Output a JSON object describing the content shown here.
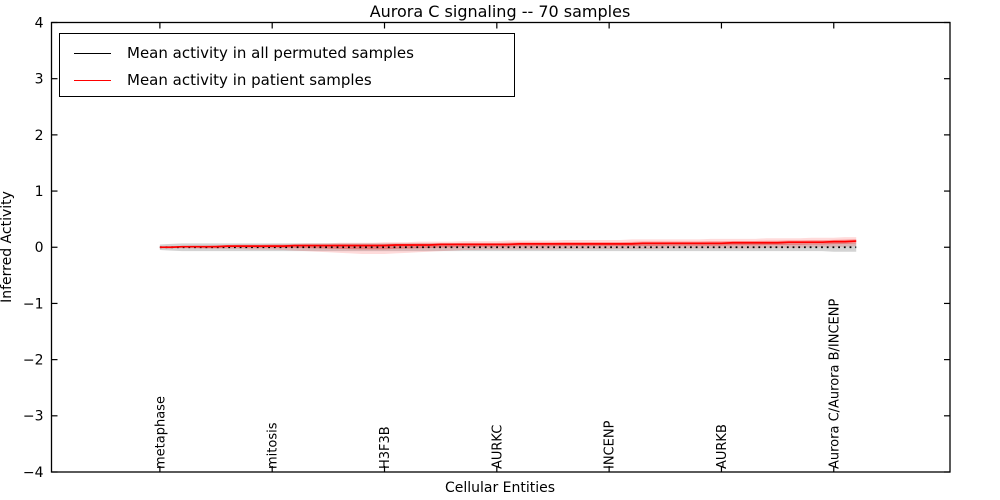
{
  "chart_data": {
    "type": "line",
    "title": "Aurora C signaling -- 70 samples",
    "xlabel": "Cellular Entities",
    "ylabel": "Inferred Activity",
    "ylim": [
      -4,
      4
    ],
    "yticks": [
      4,
      3,
      2,
      1,
      0,
      -1,
      -2,
      -3,
      -4
    ],
    "xlim": [
      -9.65,
      70.35
    ],
    "xtick_positions": [
      0,
      10,
      20,
      30,
      40,
      50,
      60
    ],
    "xtick_labels": [
      "metaphase",
      "mitosis",
      "H3F3B",
      "AURKC",
      "INCENP",
      "AURKB",
      "Aurora C/Aurora B/INCENP"
    ],
    "n_points": 63,
    "grid": false,
    "legend_position": "upper-left",
    "series": [
      {
        "name": "Mean activity in all permuted samples",
        "color": "#000000",
        "style": "dotted",
        "values": [
          0,
          0,
          0,
          0,
          0,
          0,
          0,
          0,
          0,
          0,
          0,
          0,
          0,
          0,
          0,
          0,
          0,
          0,
          0,
          0,
          0,
          0,
          0,
          0,
          0,
          0,
          0,
          0,
          0,
          0,
          0,
          0,
          0,
          0,
          0,
          0,
          0,
          0,
          0,
          0,
          0,
          0,
          0,
          0,
          0,
          0,
          0,
          0,
          0,
          0,
          0,
          0,
          0,
          0,
          0,
          0,
          0,
          0,
          0,
          0,
          0,
          0,
          0
        ]
      },
      {
        "name": "Mean activity in patient samples",
        "color": "#ff0000",
        "style": "solid",
        "values": [
          0.0,
          0.0,
          0.01,
          0.01,
          0.01,
          0.01,
          0.02,
          0.02,
          0.02,
          0.02,
          0.02,
          0.02,
          0.03,
          0.03,
          0.03,
          0.03,
          0.03,
          0.03,
          0.03,
          0.03,
          0.03,
          0.04,
          0.04,
          0.04,
          0.04,
          0.05,
          0.05,
          0.05,
          0.05,
          0.05,
          0.05,
          0.05,
          0.06,
          0.06,
          0.06,
          0.06,
          0.06,
          0.06,
          0.06,
          0.06,
          0.06,
          0.06,
          0.06,
          0.07,
          0.07,
          0.07,
          0.07,
          0.07,
          0.07,
          0.07,
          0.07,
          0.08,
          0.08,
          0.08,
          0.08,
          0.08,
          0.09,
          0.09,
          0.09,
          0.09,
          0.1,
          0.1,
          0.11
        ]
      }
    ],
    "bands": [
      {
        "name": "permuted-samples-range",
        "color": "#808080",
        "opacity": 0.35,
        "upper": [
          0.05,
          0.06,
          0.07,
          0.07,
          0.07,
          0.07,
          0.07,
          0.07,
          0.07,
          0.07,
          0.07,
          0.07,
          0.07,
          0.07,
          0.07,
          0.07,
          0.07,
          0.07,
          0.07,
          0.07,
          0.07,
          0.07,
          0.07,
          0.07,
          0.07,
          0.07,
          0.07,
          0.07,
          0.07,
          0.07,
          0.07,
          0.07,
          0.07,
          0.07,
          0.07,
          0.07,
          0.07,
          0.07,
          0.07,
          0.07,
          0.07,
          0.07,
          0.07,
          0.07,
          0.07,
          0.07,
          0.07,
          0.07,
          0.07,
          0.07,
          0.07,
          0.07,
          0.07,
          0.07,
          0.07,
          0.07,
          0.07,
          0.07,
          0.07,
          0.07,
          0.08,
          0.08,
          0.08
        ],
        "lower": [
          -0.05,
          -0.06,
          -0.07,
          -0.07,
          -0.07,
          -0.07,
          -0.07,
          -0.07,
          -0.07,
          -0.07,
          -0.07,
          -0.07,
          -0.07,
          -0.07,
          -0.07,
          -0.07,
          -0.07,
          -0.07,
          -0.07,
          -0.07,
          -0.07,
          -0.07,
          -0.07,
          -0.07,
          -0.07,
          -0.07,
          -0.07,
          -0.07,
          -0.07,
          -0.07,
          -0.07,
          -0.07,
          -0.07,
          -0.07,
          -0.07,
          -0.07,
          -0.07,
          -0.07,
          -0.07,
          -0.07,
          -0.07,
          -0.07,
          -0.07,
          -0.07,
          -0.07,
          -0.07,
          -0.07,
          -0.07,
          -0.07,
          -0.07,
          -0.07,
          -0.07,
          -0.07,
          -0.07,
          -0.07,
          -0.07,
          -0.07,
          -0.07,
          -0.07,
          -0.07,
          -0.08,
          -0.08,
          -0.08
        ]
      },
      {
        "name": "patient-samples-range",
        "color": "#ff0000",
        "opacity": 0.14,
        "upper": [
          0.01,
          0.02,
          0.02,
          0.03,
          0.03,
          0.04,
          0.04,
          0.05,
          0.05,
          0.05,
          0.06,
          0.06,
          0.06,
          0.07,
          0.07,
          0.07,
          0.08,
          0.08,
          0.08,
          0.08,
          0.09,
          0.09,
          0.09,
          0.1,
          0.1,
          0.1,
          0.1,
          0.11,
          0.11,
          0.11,
          0.11,
          0.12,
          0.12,
          0.12,
          0.12,
          0.12,
          0.13,
          0.13,
          0.13,
          0.13,
          0.13,
          0.13,
          0.14,
          0.14,
          0.14,
          0.14,
          0.14,
          0.14,
          0.14,
          0.15,
          0.15,
          0.15,
          0.15,
          0.15,
          0.16,
          0.16,
          0.16,
          0.16,
          0.17,
          0.17,
          0.17,
          0.18,
          0.18
        ],
        "lower": [
          -0.01,
          -0.02,
          -0.02,
          -0.02,
          -0.03,
          -0.03,
          -0.03,
          -0.03,
          -0.04,
          -0.04,
          -0.04,
          -0.05,
          -0.06,
          -0.07,
          -0.08,
          -0.09,
          -0.1,
          -0.11,
          -0.12,
          -0.12,
          -0.12,
          -0.11,
          -0.1,
          -0.09,
          -0.08,
          -0.07,
          -0.06,
          -0.05,
          -0.05,
          -0.04,
          -0.04,
          -0.04,
          -0.04,
          -0.04,
          -0.04,
          -0.04,
          -0.03,
          -0.03,
          -0.03,
          -0.03,
          -0.03,
          -0.03,
          -0.03,
          -0.03,
          -0.03,
          -0.02,
          -0.02,
          -0.02,
          -0.02,
          -0.02,
          -0.02,
          -0.02,
          -0.02,
          -0.02,
          -0.01,
          -0.01,
          -0.01,
          -0.01,
          0.0,
          0.0,
          0.0,
          0.01,
          0.02
        ]
      }
    ]
  }
}
